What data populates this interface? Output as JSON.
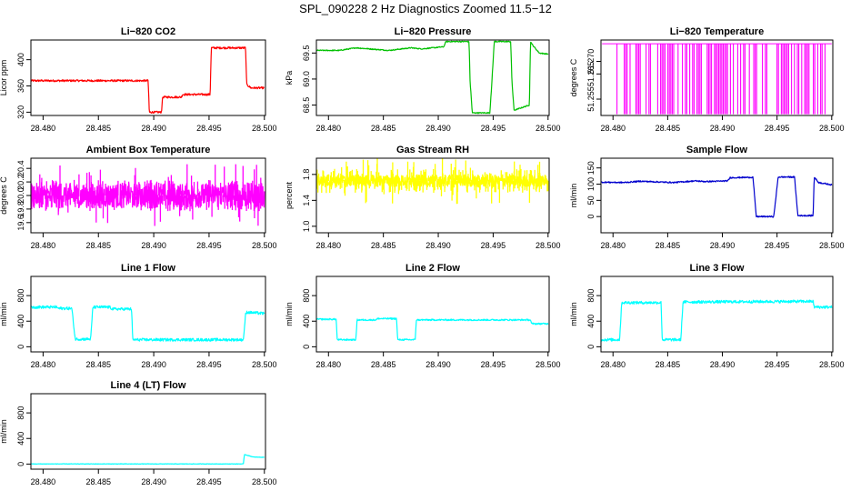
{
  "page": {
    "title": "SPL_090228  2 Hz Diagnostics Zoomed 11.5−12"
  },
  "chart_data": [
    {
      "type": "line",
      "title": "Li−820 CO2",
      "xlabel": "",
      "ylabel": "Licor ppm",
      "color": "#ff0000",
      "xlim": [
        28.4789,
        28.5001
      ],
      "ylim": [
        315,
        430
      ],
      "xticks": [
        "28.480",
        "28.485",
        "28.490",
        "28.495",
        "28.500"
      ],
      "yticks": [
        "320",
        "360",
        "400"
      ],
      "series": [
        {
          "x": [
            28.4789,
            28.4895,
            28.4896,
            28.4907,
            28.4908,
            28.4925,
            28.4926,
            28.4951,
            28.4952,
            28.4983,
            28.4984,
            28.4988,
            28.5
          ],
          "y": [
            368,
            368,
            320,
            320,
            343,
            343,
            347,
            347,
            418,
            418,
            362,
            357,
            357
          ],
          "noise": 1.5
        }
      ]
    },
    {
      "type": "line",
      "title": "Li−820 Pressure",
      "xlabel": "",
      "ylabel": "kPa",
      "color": "#00c000",
      "xlim": [
        28.4789,
        28.5001
      ],
      "ylim": [
        68.3,
        69.75
      ],
      "xticks": [
        "28.480",
        "28.485",
        "28.490",
        "28.495",
        "28.500"
      ],
      "yticks": [
        "68.5",
        "69.0",
        "69.5"
      ],
      "series": [
        {
          "x": [
            28.4789,
            28.481,
            28.4825,
            28.4855,
            28.4875,
            28.4885,
            28.4905,
            28.4907,
            28.4928,
            28.4929,
            28.4931,
            28.4947,
            28.4949,
            28.4951,
            28.4966,
            28.4967,
            28.4969,
            28.4983,
            28.4984,
            28.4986,
            28.4992,
            28.5
          ],
          "y": [
            69.55,
            69.55,
            69.6,
            69.55,
            69.6,
            69.58,
            69.62,
            69.72,
            69.72,
            68.95,
            68.35,
            68.35,
            69.0,
            69.72,
            69.72,
            69.0,
            68.4,
            68.5,
            69.72,
            69.65,
            69.5,
            69.48
          ],
          "noise": 0.01
        }
      ]
    },
    {
      "type": "bar",
      "title": "Li−820 Temperature",
      "xlabel": "",
      "ylabel": "degrees C",
      "color": "#ff00ff",
      "xlim": [
        28.4789,
        28.5001
      ],
      "ylim": [
        51.2485,
        51.2785
      ],
      "xticks": [
        "28.480",
        "28.485",
        "28.490",
        "28.495",
        "28.500"
      ],
      "yticks": [
        "51.255",
        "51.265",
        "51.270"
      ],
      "series": [
        {
          "base": 51.277,
          "low": 51.249,
          "density": 0.55
        }
      ]
    },
    {
      "type": "line",
      "title": "Ambient Box Temperature",
      "xlabel": "",
      "ylabel": "degrees C",
      "color": "#ff00ff",
      "xlim": [
        28.4789,
        28.5001
      ],
      "ylim": [
        19.45,
        20.55
      ],
      "xticks": [
        "28.480",
        "28.485",
        "28.490",
        "28.495",
        "28.500"
      ],
      "yticks": [
        "19.6",
        "19.8",
        "20.0",
        "20.2",
        "20.4"
      ],
      "series": [
        {
          "x": [
            28.4789,
            28.5
          ],
          "y": [
            20.0,
            20.0
          ],
          "noise": 0.18
        }
      ]
    },
    {
      "type": "line",
      "title": "Gas Stream RH",
      "xlabel": "",
      "ylabel": "percent",
      "color": "#ffff00",
      "xlim": [
        28.4789,
        28.5001
      ],
      "ylim": [
        0.9,
        2.05
      ],
      "xticks": [
        "28.480",
        "28.485",
        "28.490",
        "28.495",
        "28.500"
      ],
      "yticks": [
        "1.0",
        "1.4",
        "1.8"
      ],
      "series": [
        {
          "x": [
            28.4789,
            28.5
          ],
          "y": [
            1.7,
            1.7
          ],
          "noise": 0.09
        }
      ]
    },
    {
      "type": "line",
      "title": "Sample Flow",
      "xlabel": "",
      "ylabel": "ml/min",
      "color": "#0000cd",
      "xlim": [
        28.4789,
        28.5001
      ],
      "ylim": [
        -50,
        180
      ],
      "xticks": [
        "28.480",
        "28.485",
        "28.490",
        "28.495",
        "28.500"
      ],
      "yticks": [
        "0",
        "50",
        "100",
        "150"
      ],
      "series": [
        {
          "x": [
            28.4789,
            28.481,
            28.4825,
            28.4855,
            28.4875,
            28.4885,
            28.4905,
            28.4907,
            28.4928,
            28.4931,
            28.4947,
            28.4949,
            28.4951,
            28.4966,
            28.4969,
            28.4983,
            28.4984,
            28.4988,
            28.5
          ],
          "y": [
            106,
            105,
            109,
            105,
            110,
            108,
            110,
            120,
            121,
            0,
            0,
            60,
            122,
            122,
            3,
            3,
            122,
            105,
            98
          ],
          "noise": 2
        }
      ]
    },
    {
      "type": "line",
      "title": "Line 1 Flow",
      "xlabel": "",
      "ylabel": "ml/min",
      "color": "#00ffff",
      "xlim": [
        28.4789,
        28.5001
      ],
      "ylim": [
        -80,
        1100
      ],
      "xticks": [
        "28.480",
        "28.485",
        "28.490",
        "28.495",
        "28.500"
      ],
      "yticks": [
        "0",
        "400",
        "800"
      ],
      "series": [
        {
          "x": [
            28.4789,
            28.4812,
            28.4814,
            28.4826,
            28.4829,
            28.4843,
            28.4845,
            28.486,
            28.4863,
            28.488,
            28.4881,
            28.4981,
            28.4983,
            28.4984,
            28.5
          ],
          "y": [
            620,
            620,
            600,
            600,
            120,
            120,
            620,
            620,
            590,
            590,
            110,
            110,
            500,
            540,
            520
          ],
          "noise": 22
        }
      ]
    },
    {
      "type": "line",
      "title": "Line 2 Flow",
      "xlabel": "",
      "ylabel": "ml/min",
      "color": "#00ffff",
      "xlim": [
        28.4789,
        28.5001
      ],
      "ylim": [
        -80,
        1100
      ],
      "xticks": [
        "28.480",
        "28.485",
        "28.490",
        "28.495",
        "28.500"
      ],
      "yticks": [
        "0",
        "400",
        "800"
      ],
      "series": [
        {
          "x": [
            28.4789,
            28.4807,
            28.4808,
            28.4825,
            28.4826,
            28.4843,
            28.4845,
            28.4862,
            28.4863,
            28.4879,
            28.488,
            28.4984,
            28.4985,
            28.5
          ],
          "y": [
            430,
            430,
            110,
            110,
            420,
            420,
            440,
            440,
            110,
            110,
            420,
            420,
            360,
            360
          ],
          "noise": 12
        }
      ]
    },
    {
      "type": "line",
      "title": "Line 3 Flow",
      "xlabel": "",
      "ylabel": "ml/min",
      "color": "#00ffff",
      "xlim": [
        28.4789,
        28.5001
      ],
      "ylim": [
        -80,
        1100
      ],
      "xticks": [
        "28.480",
        "28.485",
        "28.490",
        "28.495",
        "28.500"
      ],
      "yticks": [
        "0",
        "400",
        "800"
      ],
      "series": [
        {
          "x": [
            28.4789,
            28.4806,
            28.4808,
            28.4844,
            28.4845,
            28.4862,
            28.4864,
            28.4983,
            28.4984,
            28.5
          ],
          "y": [
            110,
            110,
            690,
            690,
            110,
            110,
            700,
            710,
            620,
            620
          ],
          "noise": 22
        }
      ]
    },
    {
      "type": "line",
      "title": "Line 4 (LT) Flow",
      "xlabel": "",
      "ylabel": "ml/min",
      "color": "#00ffff",
      "xlim": [
        28.4789,
        28.5001
      ],
      "ylim": [
        -80,
        1100
      ],
      "xticks": [
        "28.480",
        "28.485",
        "28.490",
        "28.495",
        "28.500"
      ],
      "yticks": [
        "0",
        "400",
        "800"
      ],
      "series": [
        {
          "x": [
            28.4789,
            28.4981,
            28.4982,
            28.499,
            28.5
          ],
          "y": [
            2,
            2,
            150,
            110,
            105
          ],
          "noise": 3
        }
      ]
    }
  ]
}
